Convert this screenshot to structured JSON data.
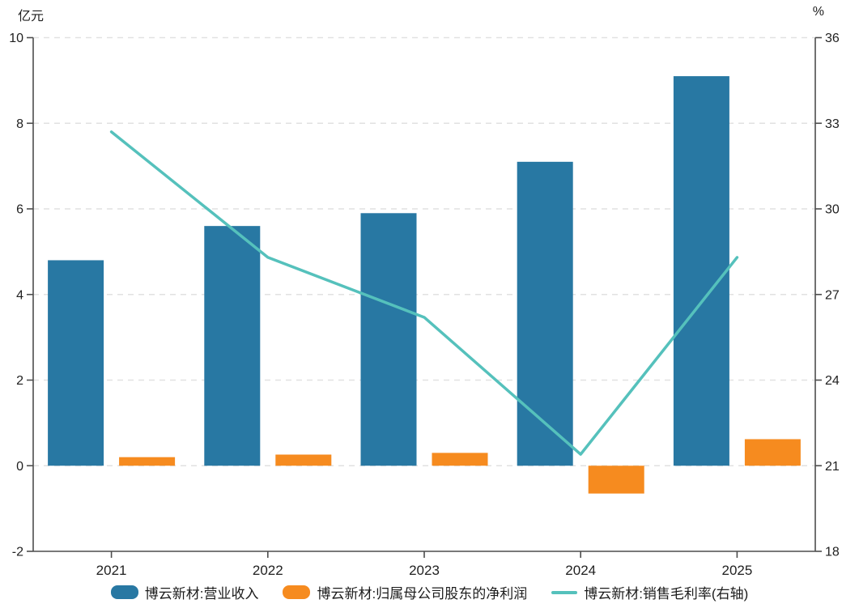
{
  "chart_data": {
    "type": "bar",
    "subtype": "grouped-bars-with-line",
    "categories": [
      "2021",
      "2022",
      "2023",
      "2024",
      "2025"
    ],
    "series": [
      {
        "name": "博云新材:营业收入",
        "type": "bar",
        "axis": "left",
        "color": "#2878a3",
        "values": [
          4.8,
          5.6,
          5.9,
          7.1,
          9.1
        ]
      },
      {
        "name": "博云新材:归属母公司股东的净利润",
        "type": "bar",
        "axis": "left",
        "color": "#f68b1f",
        "values": [
          0.2,
          0.26,
          0.3,
          -0.65,
          0.62
        ]
      },
      {
        "name": "博云新材:销售毛利率(右轴)",
        "type": "line",
        "axis": "right",
        "color": "#55c1bc",
        "values": [
          32.7,
          28.3,
          26.2,
          21.4,
          28.3
        ]
      }
    ],
    "left_axis": {
      "unit": "亿元",
      "min": -2,
      "max": 10,
      "ticks": [
        10,
        8,
        6,
        4,
        2,
        0,
        -2
      ]
    },
    "right_axis": {
      "unit": "%",
      "min": 18,
      "max": 36,
      "ticks": [
        36,
        33,
        30,
        27,
        24,
        21,
        18
      ]
    },
    "grid": "horizontal-dashed",
    "legend_position": "bottom"
  },
  "colors": {
    "axis_line": "#4d4d4d",
    "grid_line": "#e1e1e1",
    "tick_text": "#1f1f1f",
    "background": "#ffffff"
  }
}
